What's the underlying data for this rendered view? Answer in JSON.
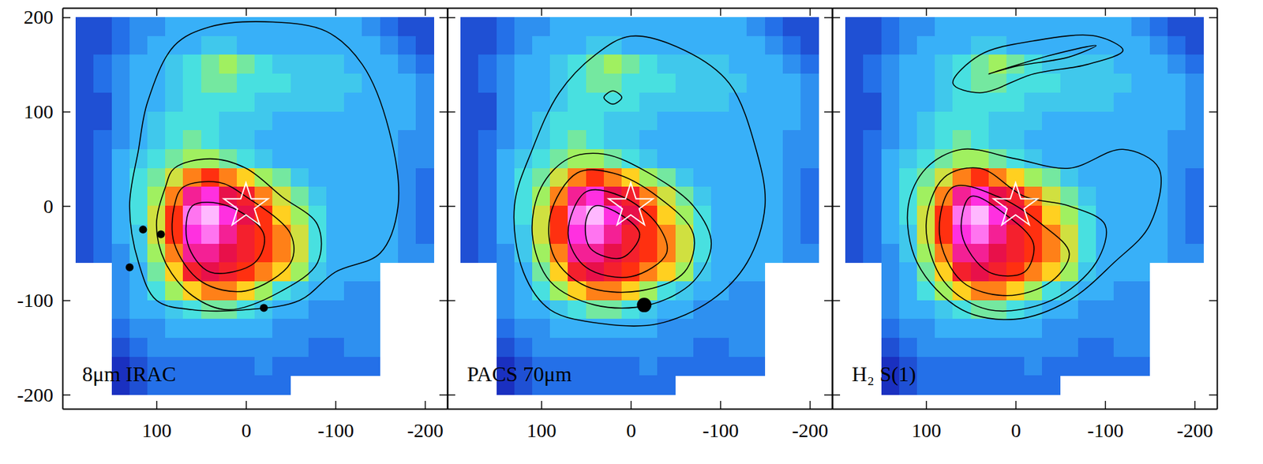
{
  "chart_data": {
    "type": "heatmap",
    "xlim": [
      205,
      -225
    ],
    "ylim": [
      -215,
      210
    ],
    "xticks": [
      100,
      0,
      -100,
      -200
    ],
    "yticks": [
      -200,
      -100,
      0,
      100,
      200
    ],
    "zlim": [
      0,
      10
    ],
    "x": [
      180,
      160,
      140,
      120,
      100,
      80,
      60,
      40,
      20,
      0,
      -20,
      -40,
      -60,
      -80,
      -100,
      -120,
      -140,
      -160,
      -180,
      -200
    ],
    "y": [
      190,
      170,
      150,
      130,
      110,
      90,
      70,
      50,
      30,
      10,
      -10,
      -30,
      -50,
      -70,
      -90,
      -110,
      -130,
      -150,
      -170,
      -190
    ],
    "cells": [
      [
        1.5,
        1.5,
        2,
        2.5,
        2.5,
        3,
        3,
        3,
        3,
        3,
        3,
        3,
        3,
        3,
        3,
        3,
        2.5,
        2,
        1.5,
        1.5
      ],
      [
        1.5,
        1.5,
        2,
        2.5,
        3,
        3,
        3,
        3.5,
        3.5,
        3,
        3,
        3,
        3,
        3,
        3,
        3,
        3,
        2.5,
        2,
        1.5
      ],
      [
        1.5,
        2,
        2.5,
        3,
        3,
        3.5,
        4,
        4.5,
        5,
        4.5,
        4,
        3.5,
        3.5,
        3.5,
        3.5,
        3,
        3,
        3,
        2.5,
        2
      ],
      [
        1.5,
        2,
        2.5,
        3,
        3,
        3.5,
        4,
        4.5,
        4.5,
        4,
        4,
        4,
        3.5,
        3.5,
        3.5,
        3.5,
        3,
        3,
        3,
        2.5
      ],
      [
        1.5,
        1.5,
        2.5,
        3,
        3,
        3.5,
        4,
        4,
        4,
        4,
        3.5,
        3.5,
        3.5,
        3.5,
        3.5,
        3,
        3,
        3,
        3,
        2.5
      ],
      [
        1.5,
        1.5,
        2.5,
        3,
        3.5,
        4,
        4,
        4,
        3.5,
        3.5,
        3.5,
        3,
        3,
        3,
        3,
        3,
        3,
        3,
        3,
        2.5
      ],
      [
        1.5,
        2,
        2.5,
        3,
        3.5,
        4,
        4.5,
        4,
        3.5,
        3.5,
        3,
        3,
        3,
        3,
        3,
        3,
        3,
        3,
        2.5,
        2.5
      ],
      [
        1.5,
        2,
        3,
        3.5,
        4,
        4.5,
        5,
        5,
        4.5,
        4,
        3.5,
        3,
        3,
        3,
        3,
        3,
        3,
        3,
        2.5,
        2.5
      ],
      [
        1.5,
        2,
        3,
        4,
        4.5,
        5.5,
        6.5,
        7,
        6.5,
        6,
        5,
        4.5,
        3.5,
        3,
        3,
        3,
        3,
        3,
        2.5,
        2
      ],
      [
        1.5,
        2,
        3,
        4,
        5,
        6.5,
        8.5,
        9,
        8,
        7.5,
        6.5,
        5.5,
        4.5,
        3.5,
        3,
        3,
        3,
        3,
        2.5,
        2
      ],
      [
        1.5,
        2,
        3,
        4,
        5.5,
        7,
        9.5,
        10,
        9,
        8,
        7,
        6,
        5,
        4,
        3,
        3,
        3,
        3,
        2.5,
        2
      ],
      [
        1.5,
        2,
        3,
        3.5,
        5.5,
        7,
        9,
        9.5,
        8.5,
        7.5,
        7,
        6.5,
        5.5,
        4,
        3,
        3,
        3,
        3,
        2.5,
        2
      ],
      [
        1.5,
        2,
        2.5,
        3.5,
        5,
        6.5,
        8.5,
        8.5,
        8,
        7.5,
        7,
        6.5,
        5.5,
        4,
        3,
        3,
        3,
        3,
        2.5,
        2.5
      ],
      [
        null,
        null,
        2.5,
        3,
        4.5,
        6,
        7.5,
        8,
        7.5,
        7,
        6.5,
        6,
        5,
        3.5,
        3,
        3,
        3,
        null,
        null,
        null
      ],
      [
        null,
        null,
        2.5,
        3,
        4,
        5,
        6,
        6.5,
        6.5,
        6,
        5,
        4,
        3.5,
        3,
        3,
        2.5,
        2.5,
        null,
        null,
        null
      ],
      [
        null,
        null,
        2.5,
        3,
        3,
        3.5,
        4,
        4.5,
        4.5,
        4,
        3.5,
        3,
        3,
        2.5,
        2.5,
        2.5,
        2.5,
        null,
        null,
        null
      ],
      [
        null,
        null,
        2,
        2.5,
        2.5,
        3,
        3,
        3,
        3,
        3,
        3,
        2.5,
        2.5,
        2.5,
        2.5,
        2.5,
        2.5,
        null,
        null,
        null
      ],
      [
        null,
        null,
        1.5,
        2,
        2.5,
        2.5,
        2.5,
        2.5,
        2.5,
        2.5,
        2.5,
        2.5,
        2.5,
        2,
        2,
        2.5,
        2.5,
        null,
        null,
        null
      ],
      [
        null,
        null,
        1,
        1.5,
        2,
        2,
        2,
        2,
        2,
        2,
        2.5,
        2,
        2,
        2,
        2,
        2,
        2,
        null,
        null,
        null
      ],
      [
        null,
        null,
        1,
        1.5,
        2,
        2,
        2,
        2,
        2,
        2,
        2,
        2,
        null,
        null,
        null,
        null,
        null,
        null,
        null,
        null
      ]
    ],
    "star": {
      "x": 0,
      "y": 0,
      "marker": "star"
    },
    "panels": [
      {
        "label": "8μm IRAC",
        "contours": [
          {
            "x": [
              110,
              80,
              40,
              -30,
              -90,
              -130,
              -160,
              -170,
              -150,
              -100,
              -60,
              0,
              60,
              100,
              120,
              130,
              120
            ],
            "y": [
              110,
              170,
              190,
              195,
              185,
              150,
              80,
              0,
              -50,
              -70,
              -100,
              -110,
              -110,
              -100,
              -60,
              0,
              60
            ]
          },
          {
            "x": [
              80,
              40,
              0,
              -40,
              -80,
              -80,
              -40,
              20,
              60,
              90,
              100,
              90
            ],
            "y": [
              40,
              50,
              40,
              10,
              -20,
              -60,
              -90,
              -110,
              -95,
              -60,
              -20,
              20
            ]
          },
          {
            "x": [
              70,
              30,
              0,
              -50,
              -50,
              0,
              50,
              80,
              80
            ],
            "y": [
              20,
              25,
              10,
              -30,
              -60,
              -90,
              -80,
              -40,
              0
            ]
          },
          {
            "x": [
              60,
              20,
              -20,
              -10,
              40,
              65
            ],
            "y": [
              0,
              0,
              -30,
              -60,
              -70,
              -40
            ]
          }
        ],
        "points": {
          "x": [
            95,
            115,
            130,
            -20
          ],
          "y": [
            -30,
            -25,
            -65,
            -108
          ]
        }
      },
      {
        "label": "PACS 70μm",
        "contours": [
          {
            "x": [
              110,
              80,
              40,
              0,
              -60,
              -110,
              -140,
              -150,
              -130,
              -90,
              -30,
              30,
              90,
              120,
              130
            ],
            "y": [
              60,
              120,
              160,
              180,
              165,
              130,
              60,
              0,
              -60,
              -100,
              -125,
              -125,
              -110,
              -70,
              0
            ]
          },
          {
            "x": [
              70,
              30,
              -20,
              -70,
              -90,
              -70,
              -20,
              40,
              90,
              110,
              100
            ],
            "y": [
              50,
              55,
              35,
              0,
              -40,
              -80,
              -105,
              -105,
              -80,
              -30,
              20
            ]
          },
          {
            "x": [
              60,
              20,
              -30,
              -70,
              -60,
              -10,
              50,
              85,
              90
            ],
            "y": [
              35,
              35,
              10,
              -30,
              -70,
              -90,
              -85,
              -55,
              -10
            ]
          },
          {
            "x": [
              50,
              10,
              -30,
              -40,
              0,
              50,
              70
            ],
            "y": [
              15,
              10,
              -20,
              -50,
              -75,
              -65,
              -30
            ]
          },
          {
            "x": [
              40,
              10,
              -10,
              10,
              45,
              50
            ],
            "y": [
              0,
              -10,
              -30,
              -55,
              -45,
              -15
            ]
          },
          {
            "x": [
              30,
              20,
              10,
              20
            ],
            "y": [
              115,
              122,
              115,
              108
            ]
          }
        ],
        "points": {
          "x": [
            -15
          ],
          "y": [
            -105
          ]
        }
      },
      {
        "label": "H₂ S(1)",
        "contours": [
          {
            "x": [
              70,
              40,
              -20,
              -90,
              -120,
              -80,
              -20,
              40
            ],
            "y": [
              130,
              160,
              175,
              180,
              165,
              150,
              140,
              120
            ]
          },
          {
            "x": [
              30,
              -40,
              -90,
              -60,
              0
            ],
            "y": [
              140,
              160,
              170,
              158,
              148
            ]
          },
          {
            "x": [
              100,
              120,
              110,
              60,
              0,
              -60,
              -110,
              -150,
              -160,
              -120,
              -60,
              0,
              60
            ],
            "y": [
              40,
              0,
              -60,
              -110,
              -120,
              -100,
              -60,
              -20,
              40,
              60,
              40,
              50,
              60
            ]
          },
          {
            "x": [
              80,
              100,
              80,
              30,
              -40,
              -90,
              -100,
              -60,
              -10,
              40
            ],
            "y": [
              30,
              -20,
              -80,
              -110,
              -100,
              -60,
              -20,
              0,
              10,
              40
            ]
          },
          {
            "x": [
              70,
              85,
              60,
              10,
              -40,
              -60,
              -30,
              20
            ],
            "y": [
              20,
              -30,
              -80,
              -95,
              -80,
              -50,
              -20,
              10
            ]
          },
          {
            "x": [
              50,
              60,
              30,
              -10,
              -20,
              10
            ],
            "y": [
              10,
              -30,
              -70,
              -70,
              -40,
              -10
            ]
          }
        ],
        "points": {
          "x": [],
          "y": []
        }
      }
    ]
  }
}
